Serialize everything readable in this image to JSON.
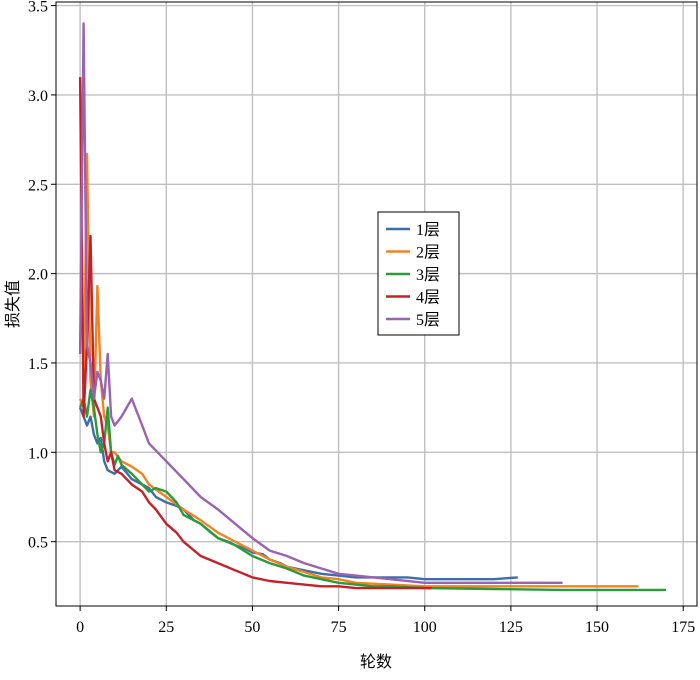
{
  "chart_data": {
    "type": "line",
    "title": "",
    "xlabel": "轮数",
    "ylabel": "损失值",
    "xlim": [
      -7,
      179
    ],
    "ylim": [
      0.14,
      3.52
    ],
    "xticks": [
      0,
      25,
      50,
      75,
      100,
      125,
      150,
      175
    ],
    "xtick_labels": [
      "0",
      "25",
      "50",
      "75",
      "100",
      "125",
      "150",
      "175"
    ],
    "yticks": [
      0.5,
      1.0,
      1.5,
      2.0,
      2.5,
      3.0,
      3.5
    ],
    "ytick_labels": [
      "0.5",
      "1.0",
      "1.5",
      "2.0",
      "2.5",
      "3.0",
      "3.5"
    ],
    "grid": true,
    "legend_position": "center-right",
    "series": [
      {
        "name": "1层",
        "color": "#3b6fa8",
        "x": [
          0,
          1,
          2,
          3,
          4,
          5,
          6,
          7,
          8,
          10,
          12,
          15,
          18,
          20,
          22,
          25,
          28,
          30,
          33,
          35,
          38,
          40,
          43,
          45,
          48,
          50,
          53,
          55,
          58,
          60,
          65,
          70,
          75,
          80,
          85,
          90,
          95,
          100,
          110,
          120,
          127
        ],
        "y": [
          1.25,
          1.2,
          1.15,
          1.2,
          1.1,
          1.05,
          1.08,
          0.95,
          0.9,
          0.88,
          0.92,
          0.85,
          0.82,
          0.8,
          0.75,
          0.72,
          0.7,
          0.68,
          0.62,
          0.6,
          0.55,
          0.52,
          0.5,
          0.48,
          0.46,
          0.44,
          0.43,
          0.4,
          0.38,
          0.36,
          0.34,
          0.32,
          0.31,
          0.3,
          0.3,
          0.3,
          0.3,
          0.29,
          0.29,
          0.29,
          0.3
        ]
      },
      {
        "name": "2层",
        "color": "#f28226",
        "x": [
          0,
          1,
          2,
          3,
          4,
          5,
          6,
          7,
          8,
          9,
          10,
          12,
          15,
          18,
          20,
          25,
          30,
          35,
          40,
          45,
          50,
          55,
          60,
          65,
          70,
          75,
          80,
          90,
          100,
          110,
          120,
          130,
          140,
          150,
          162
        ],
        "y": [
          1.3,
          1.25,
          2.67,
          1.4,
          1.2,
          1.93,
          1.4,
          1.2,
          1.15,
          1.0,
          1.0,
          0.95,
          0.92,
          0.88,
          0.82,
          0.75,
          0.68,
          0.62,
          0.55,
          0.5,
          0.45,
          0.4,
          0.36,
          0.33,
          0.3,
          0.29,
          0.27,
          0.26,
          0.25,
          0.25,
          0.25,
          0.25,
          0.25,
          0.25,
          0.25
        ]
      },
      {
        "name": "3层",
        "color": "#2a9a3b",
        "x": [
          0,
          1,
          2,
          3,
          4,
          5,
          6,
          7,
          8,
          9,
          10,
          11,
          12,
          15,
          18,
          20,
          22,
          25,
          28,
          30,
          35,
          40,
          45,
          50,
          55,
          60,
          65,
          70,
          75,
          80,
          85,
          90,
          100,
          120,
          140,
          160,
          170
        ],
        "y": [
          1.25,
          1.3,
          1.2,
          1.35,
          1.25,
          1.1,
          1.0,
          1.05,
          1.25,
          1.0,
          0.93,
          0.98,
          0.93,
          0.88,
          0.82,
          0.78,
          0.8,
          0.78,
          0.72,
          0.65,
          0.6,
          0.52,
          0.48,
          0.42,
          0.38,
          0.35,
          0.31,
          0.29,
          0.27,
          0.26,
          0.25,
          0.25,
          0.24,
          0.235,
          0.23,
          0.23,
          0.23
        ]
      },
      {
        "name": "4层",
        "color": "#c3222a",
        "x": [
          0,
          1,
          2,
          3,
          4,
          5,
          6,
          7,
          8,
          9,
          10,
          12,
          15,
          18,
          20,
          22,
          25,
          28,
          30,
          35,
          40,
          45,
          50,
          55,
          60,
          65,
          70,
          75,
          80,
          85,
          90,
          95,
          100,
          102
        ],
        "y": [
          3.1,
          1.2,
          1.6,
          2.21,
          1.3,
          1.25,
          1.2,
          1.05,
          0.95,
          1.0,
          0.9,
          0.88,
          0.82,
          0.78,
          0.72,
          0.68,
          0.6,
          0.55,
          0.5,
          0.42,
          0.38,
          0.34,
          0.3,
          0.28,
          0.27,
          0.26,
          0.25,
          0.25,
          0.24,
          0.24,
          0.24,
          0.24,
          0.24,
          0.24
        ]
      },
      {
        "name": "5层",
        "color": "#9a62b0",
        "x": [
          0,
          1,
          2,
          3,
          4,
          5,
          6,
          7,
          8,
          9,
          10,
          12,
          15,
          18,
          20,
          25,
          30,
          35,
          40,
          45,
          50,
          55,
          60,
          65,
          70,
          75,
          80,
          90,
          100,
          110,
          120,
          130,
          140
        ],
        "y": [
          1.55,
          3.4,
          1.6,
          1.5,
          1.3,
          1.45,
          1.4,
          1.3,
          1.55,
          1.2,
          1.15,
          1.2,
          1.3,
          1.15,
          1.05,
          0.95,
          0.85,
          0.75,
          0.68,
          0.6,
          0.52,
          0.45,
          0.42,
          0.38,
          0.35,
          0.32,
          0.31,
          0.29,
          0.27,
          0.27,
          0.27,
          0.27,
          0.27
        ]
      }
    ]
  }
}
